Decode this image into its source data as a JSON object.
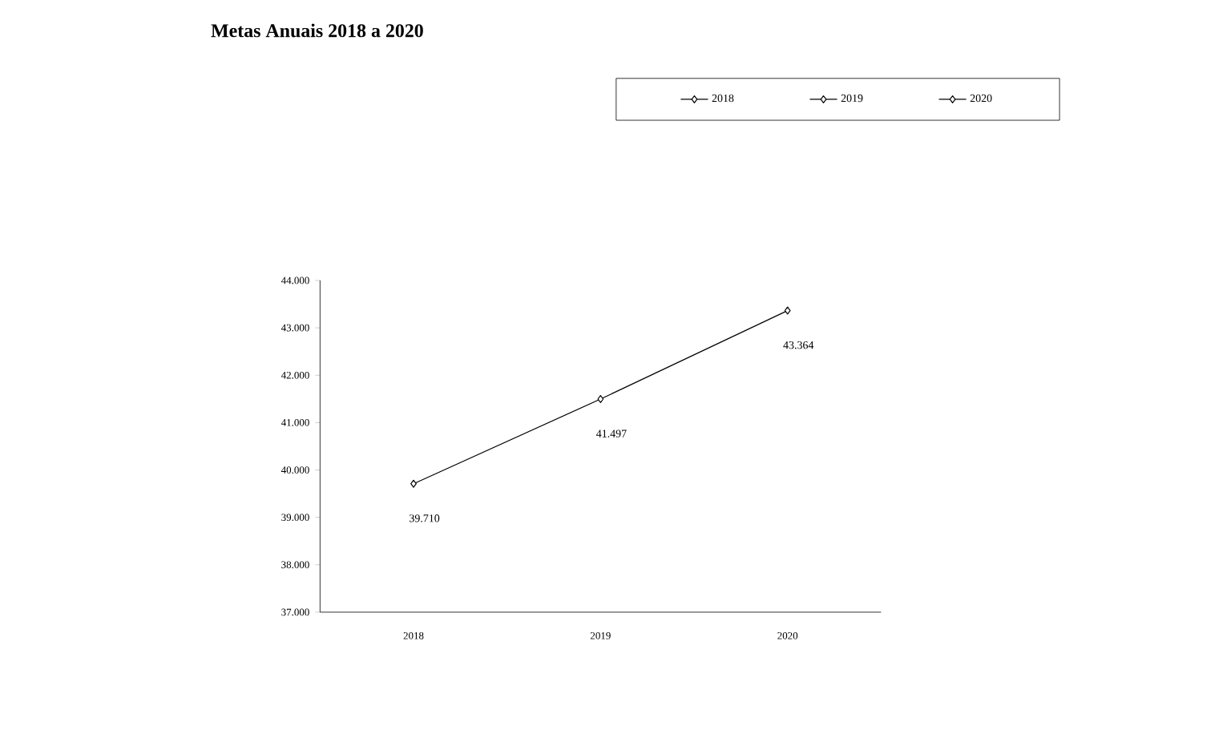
{
  "chart_data": {
    "type": "line",
    "title": "Metas Anuais 2018 a 2020",
    "categories": [
      "2018",
      "2019",
      "2020"
    ],
    "series": [
      {
        "color": "#000000",
        "marker": "none",
        "values": [
          39710,
          41497,
          43364
        ],
        "value_labels": [
          "39.710",
          "41.497",
          "43.364"
        ]
      },
      {
        "name": "2018",
        "color": "#000000",
        "values": [
          39710,
          null,
          null
        ]
      },
      {
        "name": "2019",
        "color": "#000000",
        "values": [
          null,
          41497,
          null
        ]
      },
      {
        "name": "2020",
        "color": "#000000",
        "values": [
          null,
          null,
          43364
        ]
      }
    ],
    "ylim": [
      37000,
      44000
    ],
    "yticks": [
      {
        "value": 37000,
        "label": "37.000"
      },
      {
        "value": 38000,
        "label": "38.000"
      },
      {
        "value": 39000,
        "label": "39.000"
      },
      {
        "value": 40000,
        "label": "40.000"
      },
      {
        "value": 41000,
        "label": "41.000"
      },
      {
        "value": 42000,
        "label": "42.000"
      },
      {
        "value": 43000,
        "label": "43.000"
      },
      {
        "value": 44000,
        "label": "44.000"
      }
    ],
    "grid": false,
    "legend": "top right",
    "marker": "diamond",
    "line_style": "solid"
  }
}
